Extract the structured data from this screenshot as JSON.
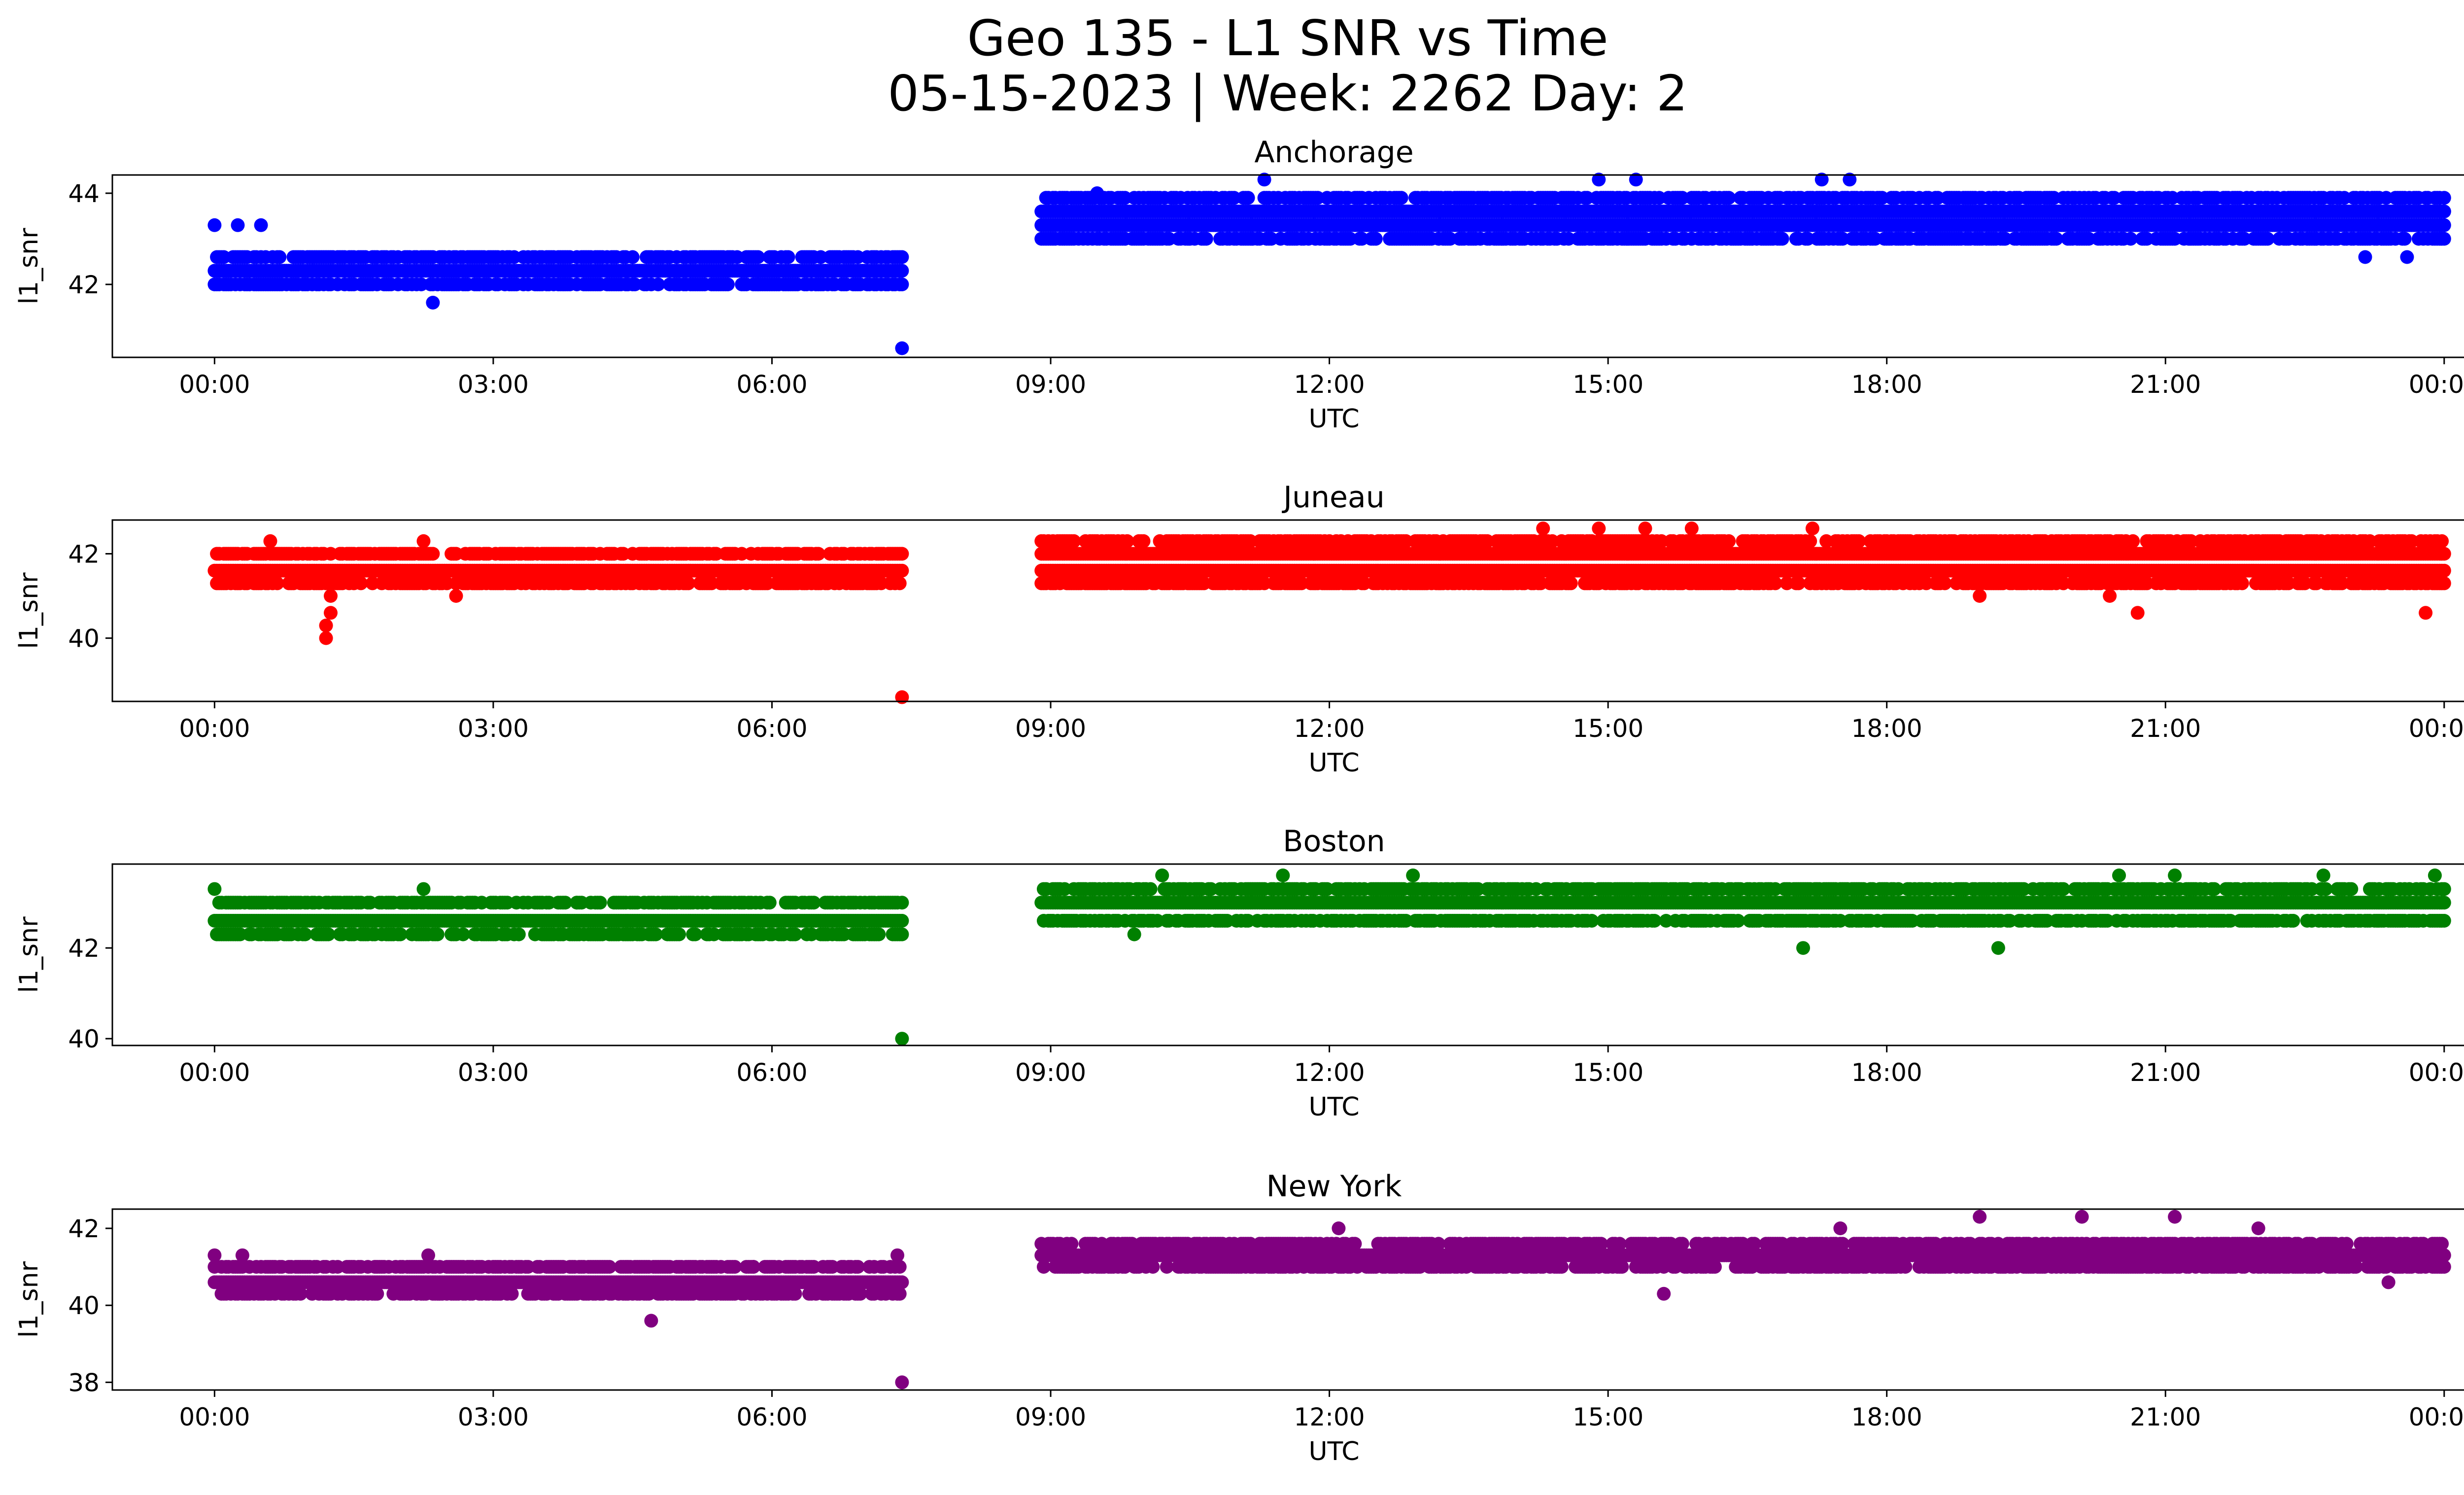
{
  "figure": {
    "title_line1": "Geo 135 - L1 SNR vs Time",
    "title_line2": "05-15-2023 | Week: 2262 Day: 2"
  },
  "chart_data": [
    {
      "type": "scatter",
      "title": "Anchorage",
      "color": "#0000ff",
      "xlabel": "UTC",
      "ylabel": "l1_snr",
      "x_ticks": [
        "00:00",
        "03:00",
        "06:00",
        "09:00",
        "12:00",
        "15:00",
        "18:00",
        "21:00",
        "00:00"
      ],
      "y_ticks": [
        42,
        44
      ],
      "ylim": [
        40.4,
        44.4
      ],
      "xlim_hours": [
        -1.1,
        25.2
      ],
      "segments": [
        {
          "start": 0.0,
          "end": 7.4,
          "levels": [
            42.0,
            42.3,
            42.6
          ]
        },
        {
          "start": 8.9,
          "end": 24.0,
          "levels": [
            43.0,
            43.3,
            43.6,
            43.9
          ]
        }
      ],
      "outliers": [
        {
          "x": 0.0,
          "y": 43.3
        },
        {
          "x": 0.25,
          "y": 43.3
        },
        {
          "x": 0.5,
          "y": 43.3
        },
        {
          "x": 2.35,
          "y": 41.6
        },
        {
          "x": 5.85,
          "y": 42.0
        },
        {
          "x": 7.4,
          "y": 40.6
        },
        {
          "x": 9.5,
          "y": 44.0
        },
        {
          "x": 11.3,
          "y": 44.3
        },
        {
          "x": 14.9,
          "y": 44.3
        },
        {
          "x": 15.3,
          "y": 44.3
        },
        {
          "x": 17.3,
          "y": 44.3
        },
        {
          "x": 17.6,
          "y": 44.3
        },
        {
          "x": 23.15,
          "y": 42.6
        },
        {
          "x": 23.6,
          "y": 42.6
        },
        {
          "x": 24.0,
          "y": 43.6
        }
      ]
    },
    {
      "type": "scatter",
      "title": "Juneau",
      "color": "#ff0000",
      "xlabel": "UTC",
      "ylabel": "l1_snr",
      "x_ticks": [
        "00:00",
        "03:00",
        "06:00",
        "09:00",
        "12:00",
        "15:00",
        "18:00",
        "21:00",
        "00:00"
      ],
      "y_ticks": [
        40,
        42
      ],
      "ylim": [
        38.5,
        42.8
      ],
      "xlim_hours": [
        -1.1,
        25.2
      ],
      "segments": [
        {
          "start": 0.0,
          "end": 7.4,
          "levels": [
            41.3,
            41.6,
            42.0
          ]
        },
        {
          "start": 8.9,
          "end": 24.0,
          "levels": [
            41.3,
            41.6,
            42.0,
            42.3
          ]
        }
      ],
      "outliers": [
        {
          "x": 0.6,
          "y": 42.3
        },
        {
          "x": 1.2,
          "y": 40.0
        },
        {
          "x": 1.2,
          "y": 40.3
        },
        {
          "x": 1.25,
          "y": 40.6
        },
        {
          "x": 1.25,
          "y": 41.0
        },
        {
          "x": 2.25,
          "y": 42.3
        },
        {
          "x": 2.6,
          "y": 41.0
        },
        {
          "x": 7.4,
          "y": 38.6
        },
        {
          "x": 9.25,
          "y": 42.3
        },
        {
          "x": 14.3,
          "y": 42.6
        },
        {
          "x": 14.9,
          "y": 42.6
        },
        {
          "x": 15.4,
          "y": 42.6
        },
        {
          "x": 15.9,
          "y": 42.6
        },
        {
          "x": 17.2,
          "y": 42.6
        },
        {
          "x": 19.0,
          "y": 41.0
        },
        {
          "x": 20.4,
          "y": 41.0
        },
        {
          "x": 20.7,
          "y": 40.6
        },
        {
          "x": 23.8,
          "y": 40.6
        }
      ]
    },
    {
      "type": "scatter",
      "title": "Boston",
      "color": "#008000",
      "xlabel": "UTC",
      "ylabel": "l1_snr",
      "x_ticks": [
        "00:00",
        "03:00",
        "06:00",
        "09:00",
        "12:00",
        "15:00",
        "18:00",
        "21:00",
        "00:00"
      ],
      "y_ticks": [
        40,
        42
      ],
      "ylim": [
        39.85,
        43.85
      ],
      "xlim_hours": [
        -1.1,
        25.2
      ],
      "segments": [
        {
          "start": 0.0,
          "end": 7.4,
          "levels": [
            42.3,
            42.6,
            43.0
          ]
        },
        {
          "start": 8.9,
          "end": 24.0,
          "levels": [
            42.6,
            43.0,
            43.3
          ]
        }
      ],
      "outliers": [
        {
          "x": 0.0,
          "y": 43.3
        },
        {
          "x": 1.1,
          "y": 42.3
        },
        {
          "x": 2.25,
          "y": 43.3
        },
        {
          "x": 3.9,
          "y": 43.0
        },
        {
          "x": 7.35,
          "y": 43.0
        },
        {
          "x": 7.4,
          "y": 40.0
        },
        {
          "x": 9.9,
          "y": 42.3
        },
        {
          "x": 10.2,
          "y": 43.6
        },
        {
          "x": 11.5,
          "y": 43.6
        },
        {
          "x": 12.9,
          "y": 43.6
        },
        {
          "x": 17.1,
          "y": 42.0
        },
        {
          "x": 19.2,
          "y": 42.0
        },
        {
          "x": 20.5,
          "y": 43.6
        },
        {
          "x": 21.1,
          "y": 43.6
        },
        {
          "x": 22.7,
          "y": 43.6
        },
        {
          "x": 23.9,
          "y": 43.6
        }
      ]
    },
    {
      "type": "scatter",
      "title": "New York",
      "color": "#800080",
      "xlabel": "UTC",
      "ylabel": "l1_snr",
      "x_ticks": [
        "00:00",
        "03:00",
        "06:00",
        "09:00",
        "12:00",
        "15:00",
        "18:00",
        "21:00",
        "00:00"
      ],
      "y_ticks": [
        38,
        40,
        42
      ],
      "ylim": [
        37.8,
        42.5
      ],
      "xlim_hours": [
        -1.1,
        25.2
      ],
      "segments": [
        {
          "start": 0.0,
          "end": 7.4,
          "levels": [
            40.3,
            40.6,
            41.0
          ]
        },
        {
          "start": 8.9,
          "end": 24.0,
          "levels": [
            41.0,
            41.3,
            41.6
          ]
        }
      ],
      "outliers": [
        {
          "x": 0.0,
          "y": 41.3
        },
        {
          "x": 0.3,
          "y": 41.3
        },
        {
          "x": 2.3,
          "y": 41.3
        },
        {
          "x": 4.7,
          "y": 39.6
        },
        {
          "x": 5.8,
          "y": 41.0
        },
        {
          "x": 7.35,
          "y": 41.3
        },
        {
          "x": 7.4,
          "y": 38.0
        },
        {
          "x": 12.1,
          "y": 42.0
        },
        {
          "x": 15.6,
          "y": 40.3
        },
        {
          "x": 17.5,
          "y": 42.0
        },
        {
          "x": 19.0,
          "y": 42.3
        },
        {
          "x": 20.1,
          "y": 42.3
        },
        {
          "x": 21.1,
          "y": 42.3
        },
        {
          "x": 22.0,
          "y": 42.0
        },
        {
          "x": 23.4,
          "y": 40.6
        }
      ]
    }
  ]
}
